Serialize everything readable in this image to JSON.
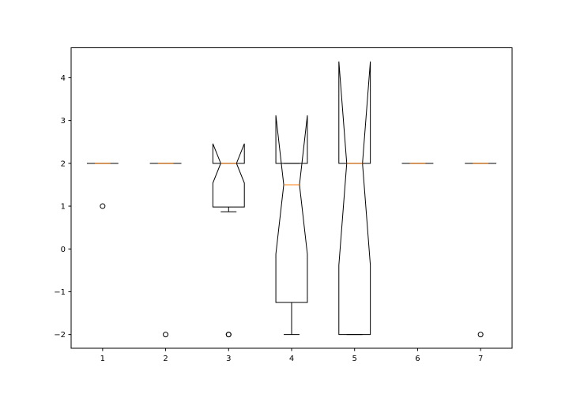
{
  "chart_data": {
    "type": "boxplot",
    "notched": true,
    "categories": [
      "1",
      "2",
      "3",
      "4",
      "5",
      "6",
      "7"
    ],
    "yticks": [
      "−2",
      "−1",
      "0",
      "1",
      "2",
      "3",
      "4"
    ],
    "ytick_values": [
      -2,
      -1,
      0,
      1,
      2,
      3,
      4
    ],
    "ylim": [
      -2.32,
      4.7
    ],
    "xlim": [
      0.5,
      7.5
    ],
    "title": "",
    "xlabel": "",
    "ylabel": "",
    "grid": false,
    "boxes": [
      {
        "x": 1,
        "q1": 2.0,
        "median": 2.0,
        "q3": 2.0,
        "notch_low": 2.0,
        "notch_high": 2.0,
        "whisker_low": 2.0,
        "whisker_high": 2.0,
        "fliers": [
          1
        ]
      },
      {
        "x": 2,
        "q1": 2.0,
        "median": 2.0,
        "q3": 2.0,
        "notch_low": 2.0,
        "notch_high": 2.0,
        "whisker_low": 2.0,
        "whisker_high": 2.0,
        "fliers": [
          -2
        ]
      },
      {
        "x": 3,
        "q1": 0.98,
        "median": 2.0,
        "q3": 2.0,
        "notch_low": 1.54,
        "notch_high": 2.46,
        "whisker_low": 0.87,
        "whisker_high": 2.0,
        "fliers": [
          -2,
          -2
        ]
      },
      {
        "x": 4,
        "q1": -1.25,
        "median": 1.5,
        "q3": 2.0,
        "notch_low": -0.12,
        "notch_high": 3.12,
        "whisker_low": -2.0,
        "whisker_high": 2.0,
        "fliers": []
      },
      {
        "x": 5,
        "q1": -2.0,
        "median": 2.0,
        "q3": 2.0,
        "notch_low": -0.38,
        "notch_high": 4.38,
        "whisker_low": -2.0,
        "whisker_high": 2.0,
        "fliers": []
      },
      {
        "x": 6,
        "q1": 2.0,
        "median": 2.0,
        "q3": 2.0,
        "notch_low": 2.0,
        "notch_high": 2.0,
        "whisker_low": 2.0,
        "whisker_high": 2.0,
        "fliers": []
      },
      {
        "x": 7,
        "q1": 2.0,
        "median": 2.0,
        "q3": 2.0,
        "notch_low": 2.0,
        "notch_high": 2.0,
        "whisker_low": 2.0,
        "whisker_high": 2.0,
        "fliers": [
          -2
        ]
      }
    ],
    "colors": {
      "box": "#000000",
      "median": "#ff7f0e",
      "flier": "#000000",
      "background": "#ffffff"
    }
  }
}
